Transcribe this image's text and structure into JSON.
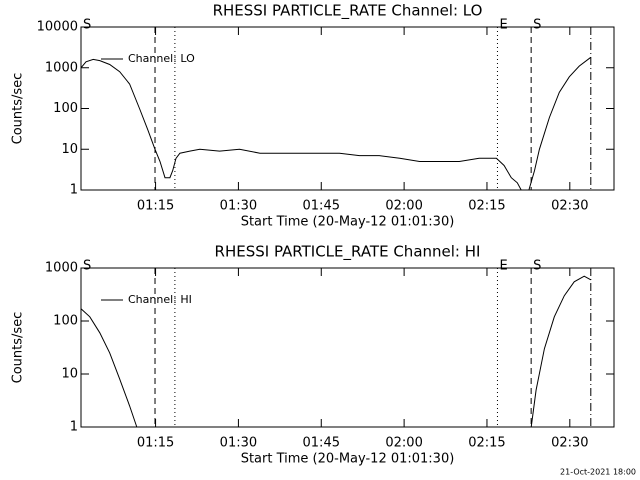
{
  "chart_data": [
    {
      "type": "line",
      "title": "RHESSI PARTICLE_RATE Channel: LO",
      "x_label": "Start Time (20-May-12 01:01:30)",
      "y_label": "Counts/sec",
      "x": [
        0,
        0.9,
        2.2,
        3.4,
        5.2,
        7.0,
        8.8,
        10.6,
        12.1,
        13.4,
        14.3,
        15.2,
        16.1,
        16.6,
        17.2,
        17.9,
        19.7,
        21.5,
        25.1,
        28.7,
        32.4,
        36.0,
        39.6,
        43.2,
        46.8,
        50.4,
        54.0,
        57.7,
        61.3,
        64.9,
        68.5,
        72.1,
        75.2,
        76.6,
        77.9,
        79.0,
        79.7,
        81.1,
        82.1,
        83.0,
        84.8,
        86.6,
        88.4,
        90.2,
        92.3
      ],
      "series": [
        {
          "name": "Channel: LO",
          "color": "#000000",
          "values": [
            1000,
            1400,
            1600,
            1500,
            1200,
            800,
            400,
            100,
            30,
            10,
            5,
            2,
            2,
            3,
            6,
            8,
            9,
            10,
            9,
            10,
            8,
            8,
            8,
            8,
            8,
            7,
            7,
            6,
            5,
            5,
            5,
            6,
            6,
            4,
            2,
            1.5,
            1,
            1,
            3,
            10,
            60,
            250,
            600,
            1100,
            1800
          ]
        }
      ],
      "xlim": [
        0,
        96.5
      ],
      "xticks": [
        {
          "value": 13.5,
          "label": "01:15"
        },
        {
          "value": 28.5,
          "label": "01:30"
        },
        {
          "value": 43.5,
          "label": "01:45"
        },
        {
          "value": 58.5,
          "label": "02:00"
        },
        {
          "value": 73.5,
          "label": "02:15"
        },
        {
          "value": 88.5,
          "label": "02:30"
        }
      ],
      "ylim": [
        1,
        10000
      ],
      "yticks": [
        1,
        10,
        100,
        1000,
        10000
      ],
      "log_y": true,
      "legend": "upper left",
      "markers": [
        {
          "x": 0,
          "label": "S"
        },
        {
          "x": 13.4,
          "style": "dashed"
        },
        {
          "x": 17.0,
          "style": "dotted"
        },
        {
          "x": 75.4,
          "style": "dotted",
          "label": "E"
        },
        {
          "x": 81.5,
          "style": "dashed",
          "label": "S"
        },
        {
          "x": 92.3,
          "style": "dashdot"
        }
      ]
    },
    {
      "type": "line",
      "title": "RHESSI PARTICLE_RATE Channel: HI",
      "x_label": "Start Time (20-May-12 01:01:30)",
      "y_label": "Counts/sec",
      "x": [
        0,
        1.6,
        3.4,
        5.2,
        7.0,
        8.8,
        10.1,
        50,
        81.5,
        82.4,
        83.9,
        85.7,
        87.5,
        89.3,
        91.1,
        92.3
      ],
      "series": [
        {
          "name": "Channel: HI",
          "color": "#000000",
          "values": [
            170,
            120,
            60,
            25,
            8,
            2.5,
            1,
            null,
            1,
            5,
            30,
            120,
            300,
            550,
            700,
            600
          ]
        }
      ],
      "xlim": [
        0,
        96.5
      ],
      "xticks": [
        {
          "value": 13.5,
          "label": "01:15"
        },
        {
          "value": 28.5,
          "label": "01:30"
        },
        {
          "value": 43.5,
          "label": "01:45"
        },
        {
          "value": 58.5,
          "label": "02:00"
        },
        {
          "value": 73.5,
          "label": "02:15"
        },
        {
          "value": 88.5,
          "label": "02:30"
        }
      ],
      "ylim": [
        1,
        1000
      ],
      "yticks": [
        1,
        10,
        100,
        1000
      ],
      "log_y": true,
      "legend": "upper left",
      "markers": [
        {
          "x": 0,
          "label": "S"
        },
        {
          "x": 13.4,
          "style": "dashed"
        },
        {
          "x": 17.0,
          "style": "dotted"
        },
        {
          "x": 75.4,
          "style": "dotted",
          "label": "E"
        },
        {
          "x": 81.5,
          "style": "dashed",
          "label": "S"
        },
        {
          "x": 92.3,
          "style": "dashdot"
        }
      ]
    }
  ],
  "footer": "21-Oct-2021 18:00"
}
